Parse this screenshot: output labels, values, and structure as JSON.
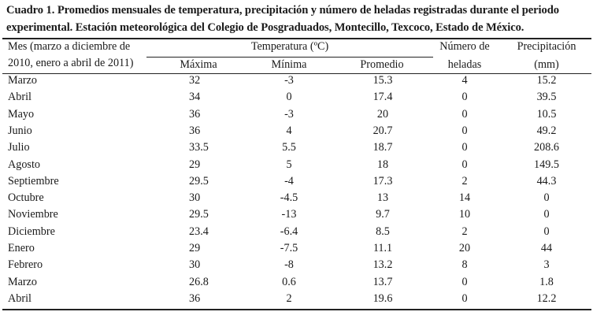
{
  "caption": {
    "line1": "Cuadro 1. Promedios mensuales de temperatura, precipitación y número de heladas registradas durante el periodo",
    "line2": "experimental. Estación meteorológica del Colegio de Posgraduados, Montecillo, Texcoco, Estado de México."
  },
  "header": {
    "mes_line1": "Mes (marzo a diciembre de",
    "mes_line2": "2010, enero a abril de 2011)",
    "temperatura": "Temperatura (ºC)",
    "maxima": "Máxima",
    "minima": "Mínima",
    "promedio": "Promedio",
    "heladas_line1": "Número de",
    "heladas_line2": "heladas",
    "precip_line1": "Precipitación",
    "precip_line2": "(mm)"
  },
  "rows": [
    [
      "Marzo",
      "32",
      "-3",
      "15.3",
      "4",
      "15.2"
    ],
    [
      "Abril",
      "34",
      "0",
      "17.4",
      "0",
      "39.5"
    ],
    [
      "Mayo",
      "36",
      "-3",
      "20",
      "0",
      "10.5"
    ],
    [
      "Junio",
      "36",
      "4",
      "20.7",
      "0",
      "49.2"
    ],
    [
      "Julio",
      "33.5",
      "5.5",
      "18.7",
      "0",
      "208.6"
    ],
    [
      "Agosto",
      "29",
      "5",
      "18",
      "0",
      "149.5"
    ],
    [
      "Septiembre",
      "29.5",
      "-4",
      "17.3",
      "2",
      "44.3"
    ],
    [
      "Octubre",
      "30",
      "-4.5",
      "13",
      "14",
      "0"
    ],
    [
      "Noviembre",
      "29.5",
      "-13",
      "9.7",
      "10",
      "0"
    ],
    [
      "Diciembre",
      "23.4",
      "-6.4",
      "8.5",
      "2",
      "0"
    ],
    [
      "Enero",
      "29",
      "-7.5",
      "11.1",
      "20",
      "44"
    ],
    [
      "Febrero",
      "30",
      "-8",
      "13.2",
      "8",
      "3"
    ],
    [
      "Marzo",
      "26.8",
      "0.6",
      "13.7",
      "0",
      "1.8"
    ],
    [
      "Abril",
      "36",
      "2",
      "19.6",
      "0",
      "12.2"
    ]
  ]
}
